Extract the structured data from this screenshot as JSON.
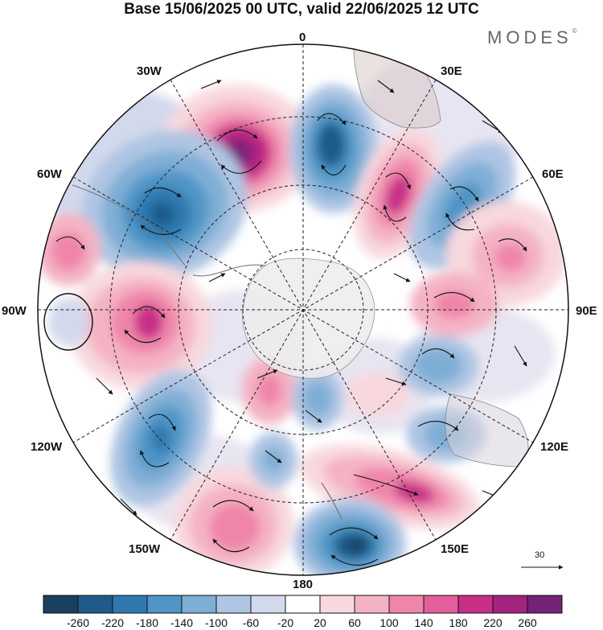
{
  "title": "Base 15/06/2025 00 UTC, valid 22/06/2025 12 UTC",
  "logo": "MODES",
  "logo_mark": "©",
  "chart_data": {
    "type": "heatmap",
    "projection": "south polar stereographic",
    "longitude_labels": {
      "top": "0",
      "top_left": "30W",
      "top_right": "30E",
      "upper_left": "60W",
      "upper_right": "60E",
      "left": "90W",
      "right": "90E",
      "lower_left": "120W",
      "lower_right": "120E",
      "bottom_left": "150W",
      "bottom_right": "150E",
      "bottom": "180"
    },
    "colorbar": {
      "ticks": [
        "-260",
        "-220",
        "-180",
        "-140",
        "-100",
        "-60",
        "-20",
        "20",
        "60",
        "100",
        "140",
        "180",
        "220",
        "260"
      ],
      "colors": [
        "#1b3f5f",
        "#1f5b8a",
        "#2f79b0",
        "#4f95c6",
        "#7faed5",
        "#aec5e3",
        "#d2d9ec",
        "#e7e5f1",
        "#ffffff",
        "#f8d8de",
        "#f4b3c4",
        "#ef86aa",
        "#e35e9a",
        "#c82f87",
        "#a3237f",
        "#742378"
      ]
    },
    "vector_reference": "30"
  }
}
